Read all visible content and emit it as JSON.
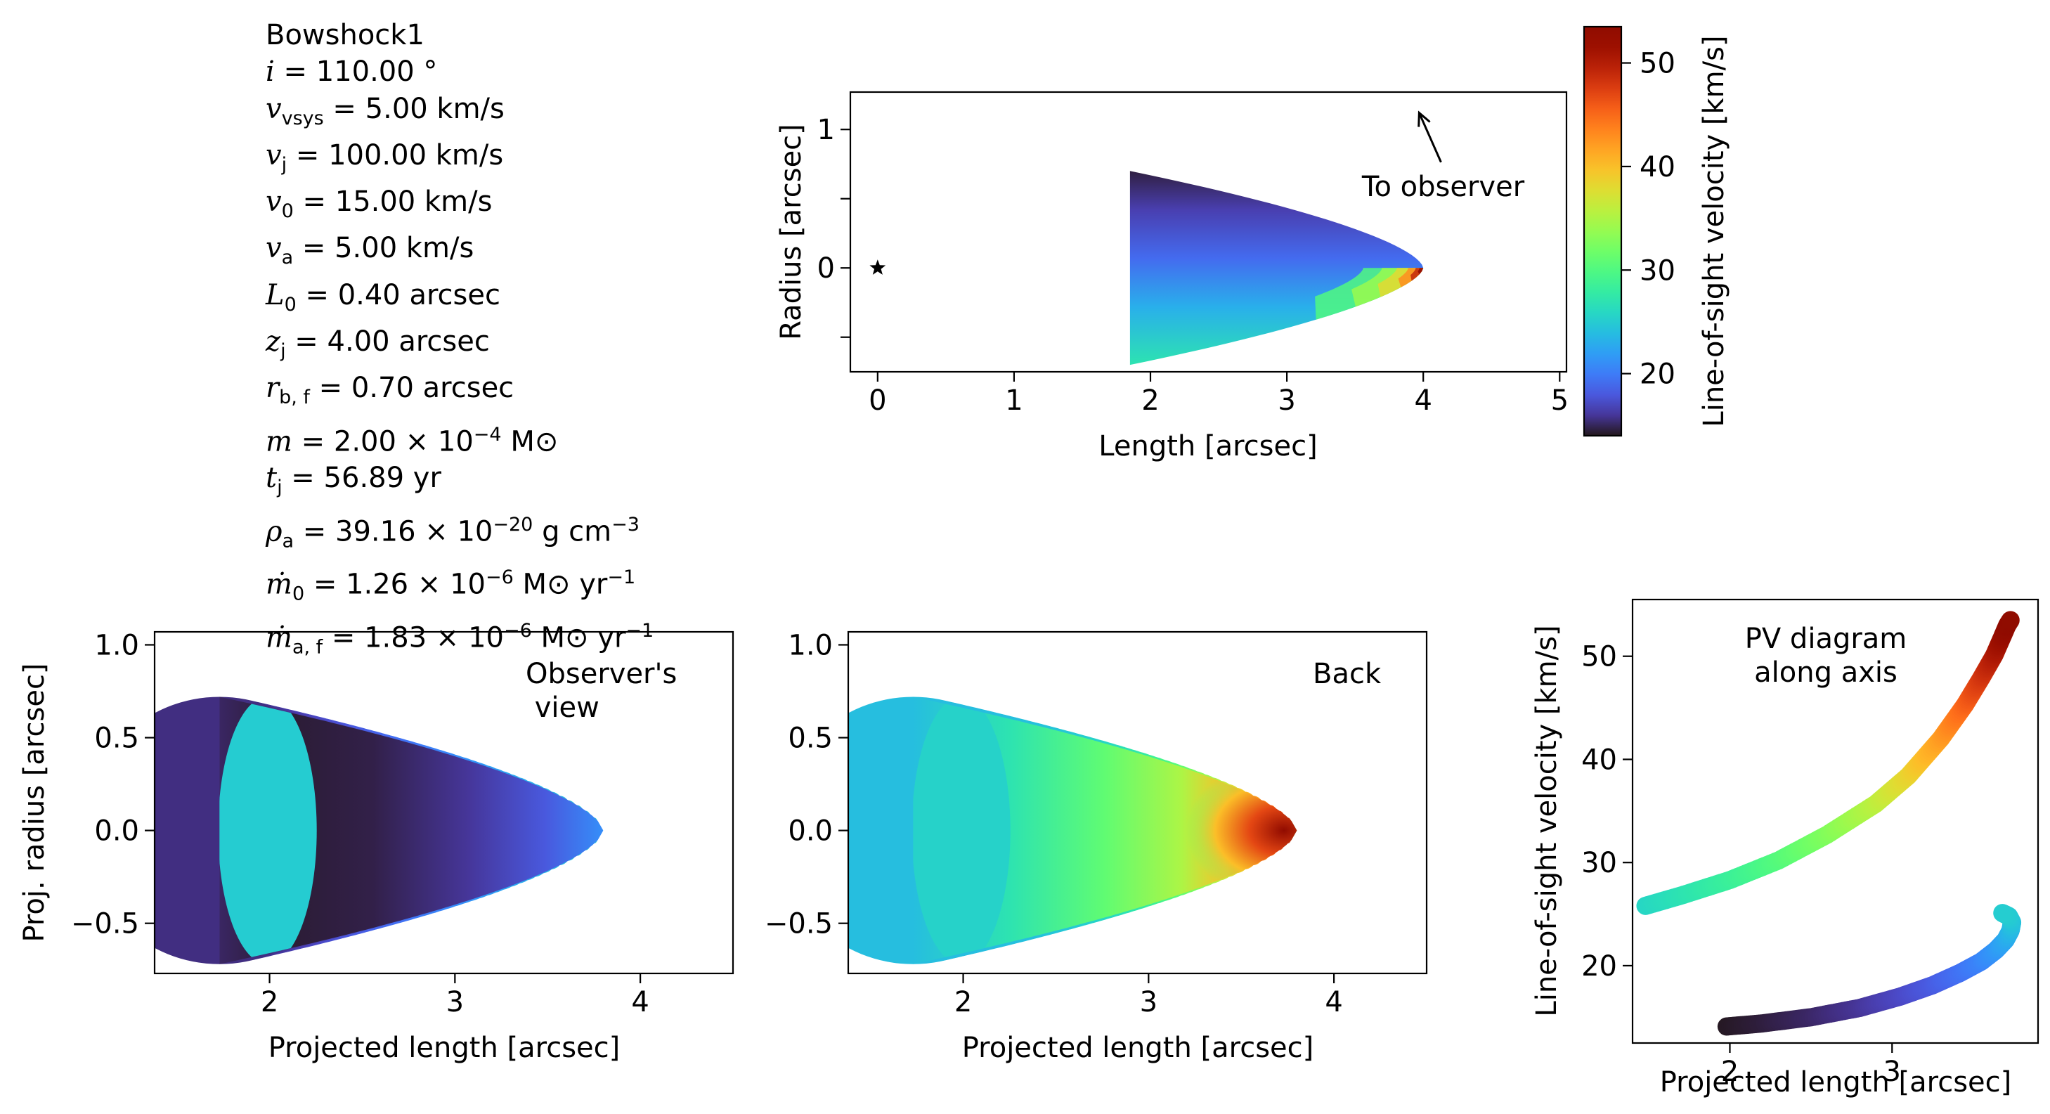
{
  "params": {
    "title": "Bowshock1",
    "lines": [
      {
        "sym": "i",
        "sub": "",
        "rhs": " = 110.00 °"
      },
      {
        "sym": "v",
        "sub": "vsys",
        "rhs": " = 5.00 km/s"
      },
      {
        "sym": "v",
        "sub": "j",
        "rhs": " = 100.00 km/s"
      },
      {
        "sym": "v",
        "sub": "0",
        "rhs": " = 15.00 km/s"
      },
      {
        "sym": "v",
        "sub": "a",
        "rhs": " = 5.00 km/s"
      },
      {
        "sym": "L",
        "sub": "0",
        "rhs": " = 0.40 arcsec"
      },
      {
        "sym": "z",
        "sub": "j",
        "rhs": " = 4.00 arcsec"
      },
      {
        "sym": "r",
        "sub": "b, f",
        "rhs": " = 0.70 arcsec"
      },
      {
        "sym": "m",
        "sub": "",
        "rhs": " = 2.00 × 10",
        "sup": "−4",
        "tail": " M⊙"
      },
      {
        "sym": "t",
        "sub": "j",
        "rhs": " = 56.89 yr"
      },
      {
        "sym": "ρ",
        "sub": "a",
        "rhs": " = 39.16 × 10",
        "sup": "−20",
        "tail": " g cm",
        "sup2": "−3"
      },
      {
        "sym": "ṁ",
        "sub": "0",
        "rhs": " = 1.26 × 10",
        "sup": "−6",
        "tail": " M⊙ yr",
        "sup2": "−1"
      },
      {
        "sym": "ṁ",
        "sub": "a, f",
        "rhs": " = 1.83 × 10",
        "sup": "−6",
        "tail": " M⊙ yr",
        "sup2": "−1"
      }
    ]
  },
  "colors": {
    "cmap": "turbo",
    "vmin": 14,
    "vmax": 53.5
  },
  "chart_data": [
    {
      "id": "morphology",
      "type": "scatter",
      "xlabel": "Length [arcsec]",
      "ylabel": "Radius [arcsec]",
      "xlim": [
        -0.2,
        5.05
      ],
      "ylim": [
        -0.75,
        1.27
      ],
      "xticks": [
        0,
        1,
        2,
        3,
        4,
        5
      ],
      "yticks": [
        -0.5,
        0,
        0.5,
        1
      ],
      "yticklabels": [
        "",
        "0",
        "",
        "1"
      ],
      "shell": {
        "z_tail": 1.85,
        "z_head": 4.0,
        "r_max": 0.7
      },
      "star": {
        "x": 0,
        "y": 0
      },
      "annotation": {
        "text": "To observer",
        "text_x": 3.55,
        "text_y": 0.52,
        "arrow_to": [
          3.97,
          1.12
        ]
      }
    },
    {
      "id": "colorbar",
      "label": "Line-of-sight velocity [km/s]",
      "vmin": 14,
      "vmax": 53.5,
      "ticks": [
        20,
        30,
        40,
        50
      ]
    },
    {
      "id": "observers-view",
      "type": "heatmap",
      "title": "Observer's\n view",
      "xlabel": "Projected length [arcsec]",
      "ylabel": "Proj. radius [arcsec]",
      "xlim": [
        1.38,
        4.5
      ],
      "ylim": [
        -0.77,
        1.07
      ],
      "xticks": [
        2,
        3,
        4
      ],
      "yticks": [
        -0.5,
        0.0,
        0.5,
        1.0
      ],
      "yticklabels": [
        "−0.5",
        "0.0",
        "0.5",
        "1.0"
      ]
    },
    {
      "id": "back",
      "type": "heatmap",
      "title": "Back",
      "xlabel": "Projected length [arcsec]",
      "ylabel": "",
      "xlim": [
        1.38,
        4.5
      ],
      "ylim": [
        -0.77,
        1.07
      ],
      "xticks": [
        2,
        3,
        4
      ],
      "yticks": [
        -0.5,
        0.0,
        0.5,
        1.0
      ],
      "yticklabels": [
        "−0.5",
        "0.0",
        "0.5",
        "1.0"
      ]
    },
    {
      "id": "pv-diagram",
      "type": "scatter",
      "title": "PV diagram\nalong axis",
      "xlabel": "Projected length [arcsec]",
      "ylabel": "Line-of-sight velocity [km/s]",
      "xlim": [
        1.4,
        3.9
      ],
      "ylim": [
        12.5,
        55.5
      ],
      "xticks": [
        2,
        3
      ],
      "yticks": [
        20,
        30,
        40,
        50
      ],
      "series": [
        {
          "x": [
            1.48,
            1.7,
            2.0,
            2.3,
            2.6,
            2.9,
            3.1,
            3.3,
            3.45,
            3.55,
            3.63,
            3.68,
            3.71,
            3.73
          ],
          "y": [
            25.8,
            26.8,
            28.3,
            30.2,
            32.7,
            35.7,
            38.4,
            42.0,
            45.3,
            47.9,
            50.1,
            51.9,
            53.0,
            53.5
          ]
        },
        {
          "x": [
            1.98,
            2.2,
            2.5,
            2.8,
            3.05,
            3.25,
            3.42,
            3.55,
            3.64,
            3.7,
            3.73,
            3.74,
            3.72,
            3.68
          ],
          "y": [
            14.1,
            14.4,
            15.0,
            15.9,
            17.0,
            18.1,
            19.3,
            20.4,
            21.5,
            22.5,
            23.4,
            24.2,
            24.8,
            25.1
          ]
        }
      ]
    }
  ]
}
